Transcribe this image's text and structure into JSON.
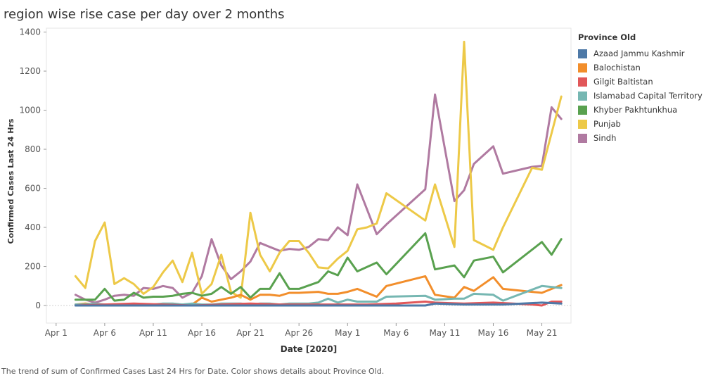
{
  "title": "region wise rise case per day over 2 months",
  "caption": "The trend of sum of Confirmed Cases Last 24 Hrs for Date.  Color shows details about Province Old.",
  "legend": {
    "title": "Province Old",
    "placement": "right"
  },
  "chart_data": {
    "type": "line",
    "title": "region wise rise case per day over 2 months",
    "xlabel": "Date [2020]",
    "ylabel": "Confirmed Cases Last 24 Hrs",
    "x_range": [
      "2020-03-31",
      "2020-05-24"
    ],
    "ylim": [
      -90,
      1420
    ],
    "y_ticks": [
      0,
      200,
      400,
      600,
      800,
      1000,
      1200,
      1400
    ],
    "x_ticks": [
      {
        "date": "2020-04-01",
        "label": "Apr 1"
      },
      {
        "date": "2020-04-06",
        "label": "Apr 6"
      },
      {
        "date": "2020-04-11",
        "label": "Apr 11"
      },
      {
        "date": "2020-04-16",
        "label": "Apr 16"
      },
      {
        "date": "2020-04-21",
        "label": "Apr 21"
      },
      {
        "date": "2020-04-26",
        "label": "Apr 26"
      },
      {
        "date": "2020-05-01",
        "label": "May 1"
      },
      {
        "date": "2020-05-06",
        "label": "May 6"
      },
      {
        "date": "2020-05-11",
        "label": "May 11"
      },
      {
        "date": "2020-05-16",
        "label": "May 16"
      },
      {
        "date": "2020-05-21",
        "label": "May 21"
      }
    ],
    "grid": false,
    "series": [
      {
        "name": "Sindh",
        "color": "#b07aa1",
        "points": [
          [
            "2020-04-03",
            55
          ],
          [
            "2020-04-04",
            30
          ],
          [
            "2020-04-05",
            15
          ],
          [
            "2020-04-06",
            30
          ],
          [
            "2020-04-07",
            50
          ],
          [
            "2020-04-08",
            55
          ],
          [
            "2020-04-09",
            50
          ],
          [
            "2020-04-10",
            90
          ],
          [
            "2020-04-11",
            85
          ],
          [
            "2020-04-12",
            100
          ],
          [
            "2020-04-13",
            90
          ],
          [
            "2020-04-14",
            40
          ],
          [
            "2020-04-15",
            65
          ],
          [
            "2020-04-16",
            150
          ],
          [
            "2020-04-17",
            340
          ],
          [
            "2020-04-18",
            205
          ],
          [
            "2020-04-19",
            135
          ],
          [
            "2020-04-20",
            175
          ],
          [
            "2020-04-21",
            225
          ],
          [
            "2020-04-22",
            320
          ],
          [
            "2020-04-23",
            300
          ],
          [
            "2020-04-24",
            280
          ],
          [
            "2020-04-25",
            290
          ],
          [
            "2020-04-26",
            285
          ],
          [
            "2020-04-27",
            300
          ],
          [
            "2020-04-28",
            340
          ],
          [
            "2020-04-29",
            335
          ],
          [
            "2020-04-30",
            400
          ],
          [
            "2020-05-01",
            360
          ],
          [
            "2020-05-02",
            620
          ],
          [
            "2020-05-04",
            365
          ],
          [
            "2020-05-05",
            415
          ],
          [
            "2020-05-09",
            595
          ],
          [
            "2020-05-10",
            1080
          ],
          [
            "2020-05-12",
            535
          ],
          [
            "2020-05-13",
            590
          ],
          [
            "2020-05-14",
            725
          ],
          [
            "2020-05-16",
            815
          ],
          [
            "2020-05-17",
            675
          ],
          [
            "2020-05-20",
            710
          ],
          [
            "2020-05-21",
            715
          ],
          [
            "2020-05-22",
            1015
          ],
          [
            "2020-05-23",
            955
          ]
        ]
      },
      {
        "name": "Punjab",
        "color": "#edc948",
        "points": [
          [
            "2020-04-03",
            150
          ],
          [
            "2020-04-04",
            90
          ],
          [
            "2020-04-05",
            330
          ],
          [
            "2020-04-06",
            425
          ],
          [
            "2020-04-07",
            110
          ],
          [
            "2020-04-08",
            140
          ],
          [
            "2020-04-09",
            110
          ],
          [
            "2020-04-10",
            60
          ],
          [
            "2020-04-11",
            95
          ],
          [
            "2020-04-12",
            170
          ],
          [
            "2020-04-13",
            230
          ],
          [
            "2020-04-14",
            120
          ],
          [
            "2020-04-15",
            270
          ],
          [
            "2020-04-16",
            60
          ],
          [
            "2020-04-17",
            110
          ],
          [
            "2020-04-18",
            260
          ],
          [
            "2020-04-19",
            70
          ],
          [
            "2020-04-20",
            40
          ],
          [
            "2020-04-21",
            475
          ],
          [
            "2020-04-22",
            260
          ],
          [
            "2020-04-23",
            175
          ],
          [
            "2020-04-24",
            270
          ],
          [
            "2020-04-25",
            330
          ],
          [
            "2020-04-26",
            330
          ],
          [
            "2020-04-27",
            270
          ],
          [
            "2020-04-28",
            195
          ],
          [
            "2020-04-29",
            190
          ],
          [
            "2020-04-30",
            240
          ],
          [
            "2020-05-01",
            280
          ],
          [
            "2020-05-02",
            390
          ],
          [
            "2020-05-03",
            400
          ],
          [
            "2020-05-04",
            420
          ],
          [
            "2020-05-05",
            575
          ],
          [
            "2020-05-09",
            435
          ],
          [
            "2020-05-10",
            620
          ],
          [
            "2020-05-12",
            300
          ],
          [
            "2020-05-13",
            1350
          ],
          [
            "2020-05-14",
            335
          ],
          [
            "2020-05-16",
            285
          ],
          [
            "2020-05-17",
            400
          ],
          [
            "2020-05-20",
            705
          ],
          [
            "2020-05-21",
            695
          ],
          [
            "2020-05-23",
            1070
          ]
        ]
      },
      {
        "name": "Khyber Pakhtunkhua",
        "color": "#59a14f",
        "points": [
          [
            "2020-04-03",
            30
          ],
          [
            "2020-04-04",
            30
          ],
          [
            "2020-04-05",
            30
          ],
          [
            "2020-04-06",
            85
          ],
          [
            "2020-04-07",
            25
          ],
          [
            "2020-04-08",
            30
          ],
          [
            "2020-04-09",
            65
          ],
          [
            "2020-04-10",
            40
          ],
          [
            "2020-04-11",
            45
          ],
          [
            "2020-04-12",
            45
          ],
          [
            "2020-04-13",
            50
          ],
          [
            "2020-04-14",
            60
          ],
          [
            "2020-04-15",
            65
          ],
          [
            "2020-04-16",
            50
          ],
          [
            "2020-04-17",
            60
          ],
          [
            "2020-04-18",
            95
          ],
          [
            "2020-04-19",
            60
          ],
          [
            "2020-04-20",
            95
          ],
          [
            "2020-04-21",
            40
          ],
          [
            "2020-04-22",
            85
          ],
          [
            "2020-04-23",
            85
          ],
          [
            "2020-04-24",
            165
          ],
          [
            "2020-04-25",
            85
          ],
          [
            "2020-04-26",
            85
          ],
          [
            "2020-04-28",
            120
          ],
          [
            "2020-04-29",
            175
          ],
          [
            "2020-04-30",
            155
          ],
          [
            "2020-05-01",
            245
          ],
          [
            "2020-05-02",
            175
          ],
          [
            "2020-05-04",
            220
          ],
          [
            "2020-05-05",
            160
          ],
          [
            "2020-05-09",
            370
          ],
          [
            "2020-05-10",
            185
          ],
          [
            "2020-05-12",
            205
          ],
          [
            "2020-05-13",
            145
          ],
          [
            "2020-05-14",
            230
          ],
          [
            "2020-05-16",
            250
          ],
          [
            "2020-05-17",
            170
          ],
          [
            "2020-05-21",
            325
          ],
          [
            "2020-05-22",
            260
          ],
          [
            "2020-05-23",
            340
          ]
        ]
      },
      {
        "name": "Balochistan",
        "color": "#f28e2b",
        "points": [
          [
            "2020-04-03",
            5
          ],
          [
            "2020-04-04",
            10
          ],
          [
            "2020-04-05",
            5
          ],
          [
            "2020-04-06",
            5
          ],
          [
            "2020-04-07",
            5
          ],
          [
            "2020-04-08",
            5
          ],
          [
            "2020-04-09",
            5
          ],
          [
            "2020-04-10",
            0
          ],
          [
            "2020-04-11",
            5
          ],
          [
            "2020-04-12",
            5
          ],
          [
            "2020-04-13",
            5
          ],
          [
            "2020-04-14",
            5
          ],
          [
            "2020-04-15",
            5
          ],
          [
            "2020-04-16",
            40
          ],
          [
            "2020-04-17",
            20
          ],
          [
            "2020-04-18",
            30
          ],
          [
            "2020-04-19",
            40
          ],
          [
            "2020-04-20",
            55
          ],
          [
            "2020-04-21",
            30
          ],
          [
            "2020-04-22",
            55
          ],
          [
            "2020-04-23",
            55
          ],
          [
            "2020-04-24",
            50
          ],
          [
            "2020-04-25",
            65
          ],
          [
            "2020-04-26",
            65
          ],
          [
            "2020-04-28",
            70
          ],
          [
            "2020-04-29",
            60
          ],
          [
            "2020-04-30",
            60
          ],
          [
            "2020-05-01",
            70
          ],
          [
            "2020-05-02",
            85
          ],
          [
            "2020-05-04",
            45
          ],
          [
            "2020-05-05",
            100
          ],
          [
            "2020-05-09",
            150
          ],
          [
            "2020-05-10",
            55
          ],
          [
            "2020-05-12",
            40
          ],
          [
            "2020-05-13",
            95
          ],
          [
            "2020-05-14",
            75
          ],
          [
            "2020-05-16",
            145
          ],
          [
            "2020-05-17",
            85
          ],
          [
            "2020-05-20",
            70
          ],
          [
            "2020-05-21",
            65
          ],
          [
            "2020-05-23",
            105
          ]
        ]
      },
      {
        "name": "Islamabad Capital Territory",
        "color": "#76b7b2",
        "points": [
          [
            "2020-04-03",
            5
          ],
          [
            "2020-04-04",
            5
          ],
          [
            "2020-04-05",
            10
          ],
          [
            "2020-04-06",
            5
          ],
          [
            "2020-04-07",
            5
          ],
          [
            "2020-04-08",
            5
          ],
          [
            "2020-04-09",
            0
          ],
          [
            "2020-04-10",
            5
          ],
          [
            "2020-04-11",
            5
          ],
          [
            "2020-04-12",
            10
          ],
          [
            "2020-04-13",
            10
          ],
          [
            "2020-04-14",
            5
          ],
          [
            "2020-04-15",
            10
          ],
          [
            "2020-04-16",
            5
          ],
          [
            "2020-04-17",
            5
          ],
          [
            "2020-04-18",
            10
          ],
          [
            "2020-04-19",
            10
          ],
          [
            "2020-04-20",
            10
          ],
          [
            "2020-04-21",
            5
          ],
          [
            "2020-04-22",
            10
          ],
          [
            "2020-04-23",
            10
          ],
          [
            "2020-04-24",
            5
          ],
          [
            "2020-04-25",
            10
          ],
          [
            "2020-04-26",
            10
          ],
          [
            "2020-04-27",
            10
          ],
          [
            "2020-04-28",
            15
          ],
          [
            "2020-04-29",
            35
          ],
          [
            "2020-04-30",
            15
          ],
          [
            "2020-05-01",
            30
          ],
          [
            "2020-05-02",
            20
          ],
          [
            "2020-05-04",
            20
          ],
          [
            "2020-05-05",
            45
          ],
          [
            "2020-05-09",
            50
          ],
          [
            "2020-05-10",
            30
          ],
          [
            "2020-05-12",
            35
          ],
          [
            "2020-05-13",
            35
          ],
          [
            "2020-05-14",
            60
          ],
          [
            "2020-05-16",
            55
          ],
          [
            "2020-05-17",
            25
          ],
          [
            "2020-05-21",
            100
          ],
          [
            "2020-05-23",
            90
          ]
        ]
      },
      {
        "name": "Gilgit Baltistan",
        "color": "#e15759",
        "points": [
          [
            "2020-04-03",
            0
          ],
          [
            "2020-04-06",
            5
          ],
          [
            "2020-04-09",
            10
          ],
          [
            "2020-04-12",
            5
          ],
          [
            "2020-04-15",
            0
          ],
          [
            "2020-04-18",
            5
          ],
          [
            "2020-04-21",
            10
          ],
          [
            "2020-04-24",
            5
          ],
          [
            "2020-04-27",
            5
          ],
          [
            "2020-04-30",
            5
          ],
          [
            "2020-05-03",
            5
          ],
          [
            "2020-05-06",
            10
          ],
          [
            "2020-05-09",
            20
          ],
          [
            "2020-05-10",
            15
          ],
          [
            "2020-05-13",
            10
          ],
          [
            "2020-05-16",
            15
          ],
          [
            "2020-05-20",
            5
          ],
          [
            "2020-05-21",
            0
          ],
          [
            "2020-05-22",
            20
          ],
          [
            "2020-05-23",
            20
          ]
        ]
      },
      {
        "name": "Azaad Jammu Kashmir",
        "color": "#4e79a7",
        "points": [
          [
            "2020-04-03",
            0
          ],
          [
            "2020-04-07",
            0
          ],
          [
            "2020-04-11",
            0
          ],
          [
            "2020-04-15",
            0
          ],
          [
            "2020-04-19",
            0
          ],
          [
            "2020-04-23",
            0
          ],
          [
            "2020-04-27",
            0
          ],
          [
            "2020-05-01",
            0
          ],
          [
            "2020-05-05",
            0
          ],
          [
            "2020-05-09",
            0
          ],
          [
            "2020-05-10",
            10
          ],
          [
            "2020-05-13",
            5
          ],
          [
            "2020-05-17",
            5
          ],
          [
            "2020-05-21",
            15
          ],
          [
            "2020-05-23",
            10
          ]
        ]
      }
    ]
  },
  "legend_order": [
    "Azaad Jammu Kashmir",
    "Balochistan",
    "Gilgit Baltistan",
    "Islamabad Capital Territory",
    "Khyber Pakhtunkhua",
    "Punjab",
    "Sindh"
  ]
}
